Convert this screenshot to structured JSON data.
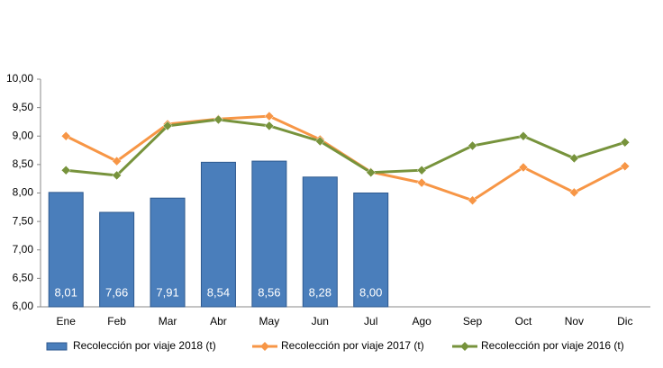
{
  "chart_data": {
    "type": "bar",
    "categories": [
      "Ene",
      "Feb",
      "Mar",
      "Abr",
      "May",
      "Jun",
      "Jul",
      "Ago",
      "Sep",
      "Oct",
      "Nov",
      "Dic"
    ],
    "series": [
      {
        "name": "Recolección por viaje 2018 (t)",
        "type": "bar",
        "color": "#4a7ebb",
        "values": [
          8.01,
          7.66,
          7.91,
          8.54,
          8.56,
          8.28,
          8.0,
          null,
          null,
          null,
          null,
          null
        ],
        "value_labels": [
          "8,01",
          "7,66",
          "7,91",
          "8,54",
          "8,56",
          "8,28",
          "8,00",
          null,
          null,
          null,
          null,
          null
        ]
      },
      {
        "name": "Recolección por viaje 2017 (t)",
        "type": "line",
        "color": "#f79646",
        "values": [
          9.0,
          8.56,
          9.21,
          9.3,
          9.35,
          8.94,
          8.37,
          8.18,
          7.87,
          8.45,
          8.01,
          8.47
        ]
      },
      {
        "name": "Recolección por viaje 2016 (t)",
        "type": "line",
        "color": "#77933c",
        "values": [
          8.4,
          8.31,
          9.18,
          9.29,
          9.18,
          8.91,
          8.36,
          8.4,
          8.83,
          9.0,
          8.61,
          8.89
        ]
      }
    ],
    "ylim": [
      6,
      10
    ],
    "yticks": [
      {
        "value": 6,
        "label": "6,00"
      },
      {
        "value": 6.5,
        "label": "6,50"
      },
      {
        "value": 7,
        "label": "7,00"
      },
      {
        "value": 7.5,
        "label": "7,50"
      },
      {
        "value": 8,
        "label": "8,00"
      },
      {
        "value": 8.5,
        "label": "8,50"
      },
      {
        "value": 9,
        "label": "9,00"
      },
      {
        "value": 9.5,
        "label": "9,50"
      },
      {
        "value": 10,
        "label": "10,00"
      }
    ],
    "grid": false,
    "legend": "bottom"
  }
}
